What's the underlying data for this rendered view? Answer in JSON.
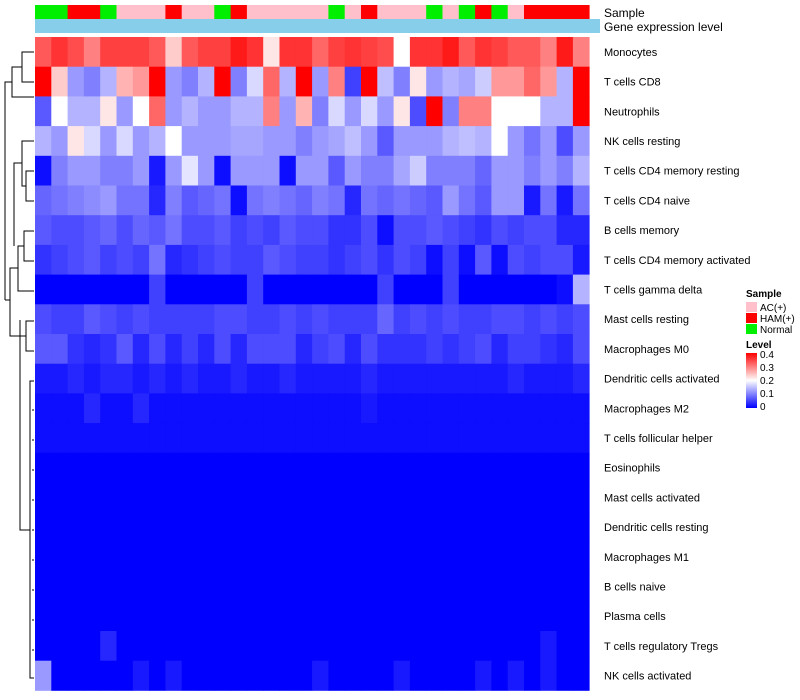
{
  "chart_data": {
    "type": "heatmap",
    "annotation_rows": [
      "Sample",
      "Gene expression level"
    ],
    "rows": [
      "Monocytes",
      "T cells CD8",
      "Neutrophils",
      "NK cells resting",
      "T cells CD4 memory resting",
      "T cells CD4 naive",
      "B cells memory",
      "T cells CD4 memory activated",
      "T cells gamma delta",
      "Mast cells resting",
      "Macrophages M0",
      "Dendritic cells activated",
      "Macrophages M2",
      "T cells follicular helper",
      "Eosinophils",
      "Mast cells activated",
      "Dendritic cells resting",
      "Macrophages M1",
      "B cells naive",
      "Plasma cells",
      "T cells regulatory  Tregs",
      "NK cells activated"
    ],
    "sample_groups": [
      "Normal",
      "Normal",
      "HAM(+)",
      "HAM(+)",
      "Normal",
      "AC(+)",
      "AC(+)",
      "AC(+)",
      "HAM(+)",
      "AC(+)",
      "AC(+)",
      "Normal",
      "HAM(+)",
      "AC(+)",
      "AC(+)",
      "AC(+)",
      "AC(+)",
      "AC(+)",
      "Normal",
      "AC(+)",
      "HAM(+)",
      "AC(+)",
      "AC(+)",
      "AC(+)",
      "Normal",
      "AC(+)",
      "Normal",
      "HAM(+)",
      "Normal",
      "AC(+)",
      "HAM(+)",
      "HAM(+)",
      "HAM(+)",
      "HAM(+)"
    ],
    "values": [
      [
        0.33,
        0.36,
        0.34,
        0.3,
        0.35,
        0.35,
        0.35,
        0.33,
        0.24,
        0.33,
        0.35,
        0.35,
        0.38,
        0.36,
        0.22,
        0.36,
        0.36,
        0.32,
        0.35,
        0.36,
        0.35,
        0.34,
        0.2,
        0.36,
        0.36,
        0.38,
        0.33,
        0.36,
        0.35,
        0.33,
        0.33,
        0.3,
        0.38,
        0.3
      ],
      [
        0.4,
        0.24,
        0.12,
        0.1,
        0.14,
        0.26,
        0.28,
        0.4,
        0.12,
        0.1,
        0.14,
        0.4,
        0.1,
        0.17,
        0.32,
        0.14,
        0.4,
        0.12,
        0.3,
        0.05,
        0.4,
        0.15,
        0.1,
        0.22,
        0.12,
        0.14,
        0.13,
        0.16,
        0.28,
        0.28,
        0.32,
        0.28,
        0.14,
        0.4
      ],
      [
        0.07,
        0.2,
        0.14,
        0.14,
        0.22,
        0.12,
        0.2,
        0.32,
        0.12,
        0.14,
        0.12,
        0.12,
        0.14,
        0.14,
        0.3,
        0.12,
        0.26,
        0.1,
        0.17,
        0.12,
        0.17,
        0.12,
        0.22,
        0.06,
        0.4,
        0.1,
        0.3,
        0.3,
        0.2,
        0.2,
        0.2,
        0.14,
        0.14,
        0.4
      ],
      [
        0.14,
        0.12,
        0.22,
        0.17,
        0.12,
        0.17,
        0.12,
        0.14,
        0.2,
        0.12,
        0.12,
        0.12,
        0.13,
        0.13,
        0.12,
        0.12,
        0.1,
        0.12,
        0.13,
        0.15,
        0.12,
        0.07,
        0.12,
        0.12,
        0.12,
        0.14,
        0.15,
        0.14,
        0.2,
        0.12,
        0.09,
        0.12,
        0.06,
        0.12
      ],
      [
        0.01,
        0.1,
        0.12,
        0.12,
        0.1,
        0.1,
        0.12,
        0.02,
        0.12,
        0.18,
        0.12,
        0.01,
        0.12,
        0.12,
        0.12,
        0.01,
        0.12,
        0.12,
        0.07,
        0.12,
        0.1,
        0.1,
        0.13,
        0.16,
        0.1,
        0.1,
        0.1,
        0.08,
        0.12,
        0.12,
        0.1,
        0.12,
        0.1,
        0.14
      ],
      [
        0.08,
        0.09,
        0.1,
        0.11,
        0.12,
        0.09,
        0.09,
        0.03,
        0.1,
        0.07,
        0.08,
        0.09,
        0.01,
        0.09,
        0.1,
        0.09,
        0.08,
        0.1,
        0.09,
        0.03,
        0.09,
        0.08,
        0.09,
        0.08,
        0.07,
        0.12,
        0.09,
        0.07,
        0.12,
        0.12,
        0.02,
        0.09,
        0.02,
        0.09
      ],
      [
        0.07,
        0.06,
        0.06,
        0.07,
        0.08,
        0.06,
        0.08,
        0.07,
        0.09,
        0.06,
        0.06,
        0.07,
        0.05,
        0.06,
        0.05,
        0.07,
        0.06,
        0.06,
        0.04,
        0.04,
        0.06,
        0.01,
        0.06,
        0.06,
        0.07,
        0.06,
        0.05,
        0.04,
        0.06,
        0.05,
        0.06,
        0.06,
        0.03,
        0.03
      ],
      [
        0.04,
        0.05,
        0.06,
        0.07,
        0.05,
        0.06,
        0.05,
        0.09,
        0.03,
        0.04,
        0.05,
        0.06,
        0.05,
        0.05,
        0.07,
        0.06,
        0.05,
        0.05,
        0.04,
        0.05,
        0.06,
        0.04,
        0.06,
        0.05,
        0.01,
        0.05,
        0.01,
        0.07,
        0.01,
        0.06,
        0.05,
        0.06,
        0.06,
        0.02
      ],
      [
        0.0,
        0.0,
        0.0,
        0.0,
        0.0,
        0.0,
        0.0,
        0.05,
        0.0,
        0.0,
        0.0,
        0.0,
        0.0,
        0.05,
        0.0,
        0.0,
        0.0,
        0.0,
        0.0,
        0.0,
        0.0,
        0.05,
        0.0,
        0.0,
        0.0,
        0.05,
        0.0,
        0.0,
        0.0,
        0.0,
        0.0,
        0.0,
        0.01,
        0.14
      ],
      [
        0.06,
        0.05,
        0.05,
        0.07,
        0.06,
        0.05,
        0.06,
        0.05,
        0.05,
        0.05,
        0.05,
        0.06,
        0.06,
        0.05,
        0.05,
        0.06,
        0.05,
        0.06,
        0.05,
        0.05,
        0.05,
        0.08,
        0.05,
        0.06,
        0.05,
        0.06,
        0.05,
        0.05,
        0.06,
        0.06,
        0.05,
        0.06,
        0.05,
        0.06
      ],
      [
        0.07,
        0.07,
        0.04,
        0.03,
        0.04,
        0.07,
        0.03,
        0.06,
        0.03,
        0.05,
        0.03,
        0.06,
        0.03,
        0.06,
        0.06,
        0.06,
        0.03,
        0.05,
        0.06,
        0.03,
        0.06,
        0.04,
        0.04,
        0.04,
        0.05,
        0.04,
        0.05,
        0.06,
        0.03,
        0.05,
        0.05,
        0.04,
        0.03,
        0.06
      ],
      [
        0.02,
        0.02,
        0.03,
        0.02,
        0.03,
        0.03,
        0.02,
        0.03,
        0.02,
        0.03,
        0.02,
        0.02,
        0.03,
        0.02,
        0.02,
        0.03,
        0.02,
        0.02,
        0.02,
        0.02,
        0.03,
        0.02,
        0.02,
        0.02,
        0.02,
        0.02,
        0.02,
        0.02,
        0.02,
        0.03,
        0.02,
        0.02,
        0.02,
        0.03
      ],
      [
        0.01,
        0.01,
        0.01,
        0.03,
        0.01,
        0.01,
        0.03,
        0.01,
        0.01,
        0.01,
        0.01,
        0.01,
        0.01,
        0.01,
        0.01,
        0.01,
        0.01,
        0.01,
        0.01,
        0.01,
        0.02,
        0.01,
        0.01,
        0.01,
        0.01,
        0.01,
        0.01,
        0.01,
        0.01,
        0.01,
        0.01,
        0.01,
        0.01,
        0.01
      ],
      [
        0.01,
        0.01,
        0.01,
        0.01,
        0.01,
        0.01,
        0.01,
        0.01,
        0.01,
        0.01,
        0.01,
        0.01,
        0.01,
        0.01,
        0.01,
        0.01,
        0.01,
        0.01,
        0.01,
        0.01,
        0.01,
        0.01,
        0.01,
        0.01,
        0.01,
        0.01,
        0.01,
        0.01,
        0.01,
        0.01,
        0.01,
        0.01,
        0.01,
        0.01
      ],
      [
        0.0,
        0.0,
        0.0,
        0.0,
        0.0,
        0.0,
        0.0,
        0.0,
        0.0,
        0.0,
        0.0,
        0.0,
        0.0,
        0.0,
        0.0,
        0.0,
        0.0,
        0.0,
        0.0,
        0.0,
        0.0,
        0.0,
        0.0,
        0.0,
        0.0,
        0.0,
        0.0,
        0.0,
        0.0,
        0.0,
        0.0,
        0.0,
        0.0,
        0.0
      ],
      [
        0.0,
        0.0,
        0.0,
        0.0,
        0.0,
        0.0,
        0.0,
        0.0,
        0.0,
        0.0,
        0.0,
        0.0,
        0.0,
        0.0,
        0.0,
        0.0,
        0.0,
        0.0,
        0.0,
        0.0,
        0.0,
        0.0,
        0.0,
        0.0,
        0.0,
        0.0,
        0.0,
        0.0,
        0.0,
        0.0,
        0.0,
        0.0,
        0.0,
        0.0
      ],
      [
        0.0,
        0.0,
        0.0,
        0.0,
        0.0,
        0.0,
        0.0,
        0.0,
        0.0,
        0.0,
        0.0,
        0.0,
        0.0,
        0.0,
        0.0,
        0.0,
        0.0,
        0.0,
        0.0,
        0.0,
        0.0,
        0.0,
        0.0,
        0.0,
        0.0,
        0.0,
        0.0,
        0.0,
        0.0,
        0.0,
        0.0,
        0.0,
        0.0,
        0.0
      ],
      [
        0.0,
        0.0,
        0.0,
        0.0,
        0.0,
        0.0,
        0.0,
        0.0,
        0.0,
        0.0,
        0.0,
        0.0,
        0.0,
        0.0,
        0.0,
        0.0,
        0.0,
        0.0,
        0.0,
        0.0,
        0.0,
        0.0,
        0.0,
        0.0,
        0.0,
        0.0,
        0.0,
        0.0,
        0.0,
        0.0,
        0.0,
        0.0,
        0.0,
        0.0
      ],
      [
        0.0,
        0.0,
        0.0,
        0.0,
        0.0,
        0.0,
        0.0,
        0.0,
        0.0,
        0.0,
        0.0,
        0.0,
        0.0,
        0.0,
        0.0,
        0.0,
        0.0,
        0.0,
        0.0,
        0.0,
        0.0,
        0.0,
        0.0,
        0.0,
        0.0,
        0.0,
        0.0,
        0.0,
        0.0,
        0.0,
        0.0,
        0.0,
        0.0,
        0.0
      ],
      [
        0.0,
        0.0,
        0.0,
        0.0,
        0.0,
        0.0,
        0.0,
        0.0,
        0.0,
        0.0,
        0.0,
        0.0,
        0.0,
        0.0,
        0.0,
        0.0,
        0.0,
        0.0,
        0.0,
        0.0,
        0.0,
        0.0,
        0.0,
        0.0,
        0.0,
        0.0,
        0.0,
        0.0,
        0.0,
        0.0,
        0.0,
        0.0,
        0.0,
        0.0
      ],
      [
        0.0,
        0.0,
        0.0,
        0.0,
        0.03,
        0.0,
        0.0,
        0.0,
        0.0,
        0.0,
        0.0,
        0.0,
        0.0,
        0.0,
        0.0,
        0.0,
        0.0,
        0.0,
        0.0,
        0.0,
        0.0,
        0.0,
        0.0,
        0.0,
        0.0,
        0.0,
        0.0,
        0.0,
        0.0,
        0.0,
        0.0,
        0.02,
        0.0,
        0.0
      ],
      [
        0.12,
        0.0,
        0.0,
        0.0,
        0.0,
        0.0,
        0.02,
        0.0,
        0.02,
        0.0,
        0.0,
        0.0,
        0.0,
        0.0,
        0.0,
        0.0,
        0.0,
        0.02,
        0.0,
        0.0,
        0.0,
        0.0,
        0.02,
        0.0,
        0.0,
        0.0,
        0.0,
        0.02,
        0.0,
        0.02,
        0.0,
        0.02,
        0.0,
        0.0
      ]
    ],
    "legend": {
      "sample_title": "Sample",
      "sample_items": [
        {
          "label": "AC(+)",
          "color": "#FFC0CB"
        },
        {
          "label": "HAM(+)",
          "color": "#FF0000"
        },
        {
          "label": "Normal",
          "color": "#00EE00"
        }
      ],
      "level_title": "Level",
      "level_ticks": [
        "0.4",
        "0.3",
        "0.2",
        "0.1",
        "0"
      ],
      "level_range": [
        0,
        0.4
      ]
    },
    "colors": {
      "low": "#0000FF",
      "mid": "#FFFFFF",
      "high": "#FF0000",
      "gene_expression_bar": "#87CEEB"
    }
  }
}
